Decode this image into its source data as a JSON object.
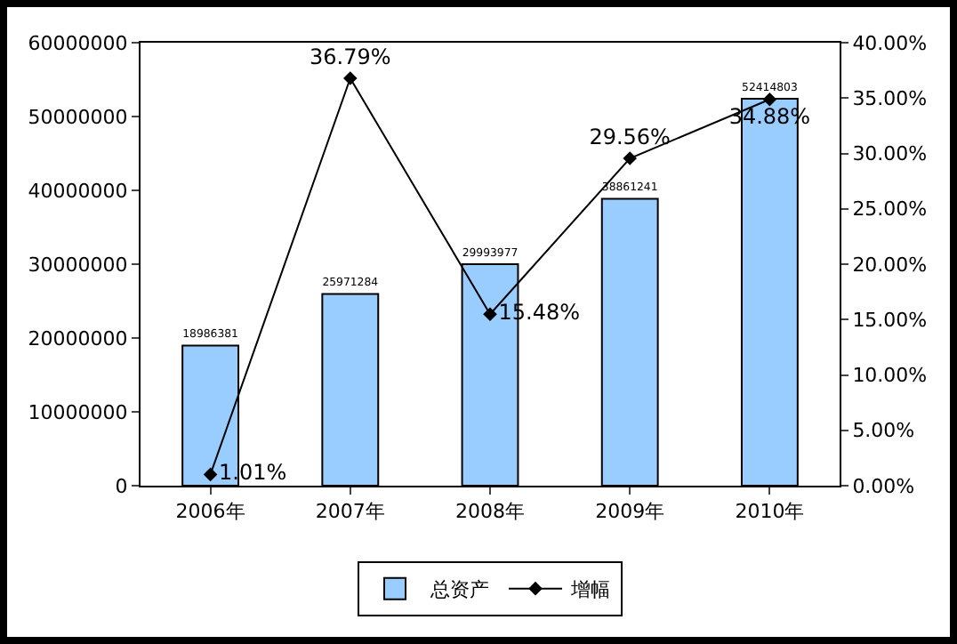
{
  "chart_data": {
    "type": "bar",
    "categories": [
      "2006年",
      "2007年",
      "2008年",
      "2009年",
      "2010年"
    ],
    "series": [
      {
        "name": "总资产",
        "color": "#99ccff",
        "values": [
          18986381,
          25971284,
          29993977,
          38861241,
          52414803
        ],
        "value_labels": [
          "18986381",
          "25971284",
          "29993977",
          "38861241",
          "52414803"
        ]
      },
      {
        "name": "增幅",
        "type": "line",
        "axis": "y2",
        "color": "#000000",
        "values": [
          1.01,
          36.79,
          15.48,
          29.56,
          34.88
        ],
        "value_labels": [
          "1.01%",
          "36.79%",
          "15.48%",
          "29.56%",
          "34.88%"
        ]
      }
    ],
    "ylim": [
      0,
      60000000
    ],
    "yticks": [
      0,
      10000000,
      20000000,
      30000000,
      40000000,
      50000000,
      60000000
    ],
    "y2lim": [
      0,
      40
    ],
    "y2ticks": [
      {
        "value": 0,
        "label": "0.00%"
      },
      {
        "value": 5,
        "label": "5.00%"
      },
      {
        "value": 10,
        "label": "10.00%"
      },
      {
        "value": 15,
        "label": "15.00%"
      },
      {
        "value": 20,
        "label": "20.00%"
      },
      {
        "value": 25,
        "label": "25.00%"
      },
      {
        "value": 30,
        "label": "30.00%"
      },
      {
        "value": 35,
        "label": "35.00%"
      },
      {
        "value": 40,
        "label": "40.00%"
      }
    ],
    "grid": false,
    "legend": "bottom",
    "marker": "diamond",
    "line_style": "solid"
  }
}
